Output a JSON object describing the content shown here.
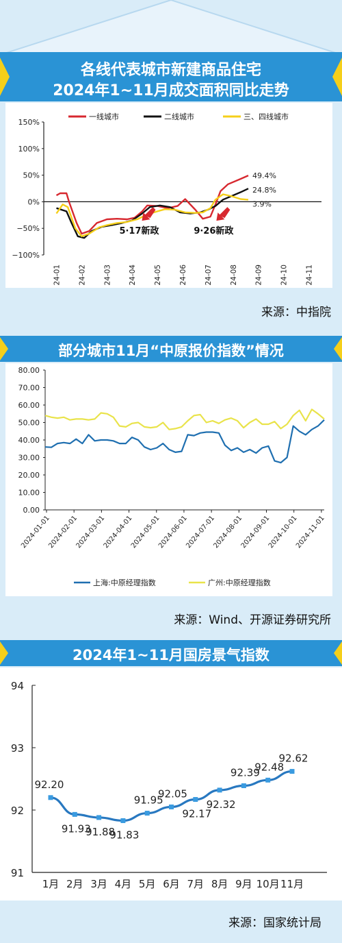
{
  "charts": [
    {
      "title_line1": "各线代表城市新建商品住宅",
      "title_line2": "2024年1~11月成交面积同比走势",
      "source": "来源：中指院",
      "chart_data": {
        "type": "line",
        "categories": [
          "24-01",
          "24-02",
          "24-03",
          "24-04",
          "24-05",
          "24-06",
          "24-07",
          "24-08",
          "24-09",
          "24-10",
          "24-11"
        ],
        "y_ticks": [
          "150%",
          "100%",
          "50%",
          "0%",
          "−50%",
          "−100%"
        ],
        "ylim": [
          -100,
          150
        ],
        "legend_position": "top",
        "series": [
          {
            "name": "一线城市",
            "color": "#d7282f",
            "points": [
              [
                0,
                12
              ],
              [
                0.15,
                16
              ],
              [
                0.4,
                16
              ],
              [
                0.5,
                0
              ],
              [
                0.8,
                -40
              ],
              [
                1,
                -60
              ],
              [
                1.3,
                -55
              ],
              [
                1.6,
                -40
              ],
              [
                2,
                -33
              ],
              [
                2.4,
                -32
              ],
              [
                2.8,
                -33
              ],
              [
                3.1,
                -30
              ],
              [
                3.4,
                -18
              ],
              [
                3.6,
                -7
              ],
              [
                4,
                -8
              ],
              [
                4.4,
                -12
              ],
              [
                4.8,
                -8
              ],
              [
                5.1,
                5
              ],
              [
                5.5,
                -15
              ],
              [
                5.8,
                -32
              ],
              [
                6.1,
                -28
              ],
              [
                6.3,
                -5
              ],
              [
                6.5,
                20
              ],
              [
                6.8,
                33
              ],
              [
                7.3,
                43
              ],
              [
                7.6,
                49.4
              ]
            ]
          },
          {
            "name": "二线城市",
            "color": "#111111",
            "points": [
              [
                0,
                -12
              ],
              [
                0.4,
                -18
              ],
              [
                0.6,
                -40
              ],
              [
                0.85,
                -65
              ],
              [
                1.1,
                -68
              ],
              [
                1.4,
                -55
              ],
              [
                1.8,
                -47
              ],
              [
                2.2,
                -44
              ],
              [
                2.6,
                -40
              ],
              [
                3,
                -35
              ],
              [
                3.4,
                -22
              ],
              [
                3.7,
                -10
              ],
              [
                4.1,
                -7
              ],
              [
                4.5,
                -10
              ],
              [
                4.9,
                -20
              ],
              [
                5.3,
                -22
              ],
              [
                5.7,
                -20
              ],
              [
                6,
                -15
              ],
              [
                6.3,
                -8
              ],
              [
                6.6,
                4
              ],
              [
                7,
                12
              ],
              [
                7.3,
                18
              ],
              [
                7.6,
                24.8
              ]
            ]
          },
          {
            "name": "三、四线城市",
            "color": "#f5cf1a",
            "points": [
              [
                0,
                -22
              ],
              [
                0.25,
                -5
              ],
              [
                0.45,
                -10
              ],
              [
                0.75,
                -50
              ],
              [
                1,
                -65
              ],
              [
                1.3,
                -60
              ],
              [
                1.7,
                -48
              ],
              [
                2,
                -44
              ],
              [
                2.4,
                -40
              ],
              [
                2.8,
                -38
              ],
              [
                3.2,
                -33
              ],
              [
                3.6,
                -24
              ],
              [
                4,
                -18
              ],
              [
                4.3,
                -14
              ],
              [
                4.7,
                -15
              ],
              [
                5.1,
                -20
              ],
              [
                5.5,
                -21
              ],
              [
                5.8,
                -20
              ],
              [
                6.1,
                -12
              ],
              [
                6.3,
                4
              ],
              [
                6.6,
                14
              ],
              [
                6.9,
                11
              ],
              [
                7.3,
                5
              ],
              [
                7.6,
                3.9
              ]
            ]
          }
        ],
        "end_labels": [
          "49.4%",
          "24.8%",
          "3.9%"
        ],
        "annotations": [
          {
            "text": "5·17新政",
            "x": 3.55
          },
          {
            "text": "9·26新政",
            "x": 6.5
          }
        ]
      }
    },
    {
      "title": "部分城市11月“中原报价指数”情况",
      "source": "来源：Wind、开源证券研究所",
      "chart_data": {
        "type": "line",
        "x_ticks": [
          "2024-01-01",
          "2024-02-01",
          "2024-03-01",
          "2024-04-01",
          "2024-05-01",
          "2024-06-01",
          "2024-07-01",
          "2024-08-01",
          "2024-09-01",
          "2024-10-01",
          "2024-11-01"
        ],
        "y_ticks": [
          "80.00",
          "70.00",
          "60.00",
          "50.00",
          "40.00",
          "30.00",
          "20.00",
          "10.00",
          "0.00"
        ],
        "ylim": [
          0,
          80
        ],
        "legend_position": "bottom",
        "series": [
          {
            "name": "上海:中原经理指数",
            "color": "#1f6fb0",
            "values": [
              36,
              35.8,
              38,
              38.5,
              38,
              40.5,
              38,
              43,
              39.5,
              40,
              40,
              39.5,
              38,
              38,
              41.5,
              40,
              36,
              34.5,
              35.5,
              38,
              34.5,
              33,
              33.5,
              43,
              42.5,
              44,
              44.5,
              44.5,
              44,
              37,
              34,
              35.5,
              33,
              34.5,
              32.5,
              35.5,
              36.5,
              28,
              27,
              30,
              48,
              45,
              43,
              46,
              48,
              51.5
            ]
          },
          {
            "name": "广州:中原经理指数",
            "color": "#e9e34a",
            "values": [
              54,
              53,
              52.5,
              53,
              51.5,
              52,
              52,
              51.5,
              52,
              55.5,
              55,
              53,
              48,
              47.5,
              49.5,
              50,
              47.5,
              47,
              47.5,
              50,
              46,
              46.5,
              47.5,
              51,
              54,
              54.5,
              50,
              51,
              49.5,
              51.5,
              52.5,
              51,
              47,
              50,
              52,
              49,
              49,
              50.5,
              46.5,
              49,
              54,
              57,
              51,
              57.5,
              55,
              52
            ]
          }
        ]
      }
    },
    {
      "title": "2024年1~11月国房景气指数",
      "source": "来源：国家统计局",
      "chart_data": {
        "type": "line",
        "categories": [
          "1月",
          "2月",
          "3月",
          "4月",
          "5月",
          "6月",
          "7月",
          "8月",
          "9月",
          "10月",
          "11月"
        ],
        "values": [
          92.2,
          91.93,
          91.88,
          91.83,
          91.95,
          92.05,
          92.17,
          92.32,
          92.39,
          92.48,
          92.62
        ],
        "value_labels": [
          "92.20",
          "91.93",
          "91.88",
          "91.83",
          "91.95",
          "92.05",
          "92.17",
          "92.32",
          "92.39",
          "92.48",
          "92.62"
        ],
        "y_ticks": [
          "94",
          "93",
          "92",
          "91"
        ],
        "ylim": [
          91,
          94
        ],
        "color": "#2878c0"
      }
    }
  ]
}
